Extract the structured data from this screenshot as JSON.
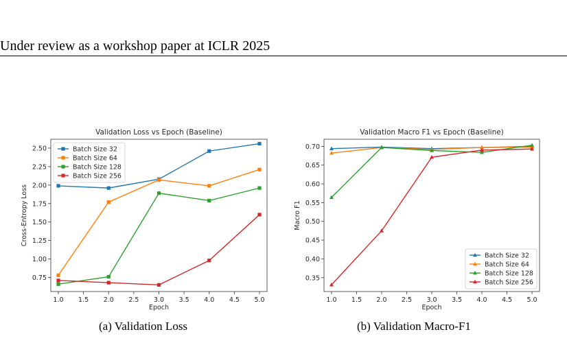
{
  "header": "Under review as a workshop paper at ICLR 2025",
  "captions": [
    "(a) Validation Loss",
    "(b) Validation Macro-F1"
  ],
  "chart_data": [
    {
      "type": "line",
      "title": "Validation Loss vs Epoch (Baseline)",
      "xlabel": "Epoch",
      "ylabel": "Cross-Entropy Loss",
      "x": [
        1.0,
        2.0,
        3.0,
        4.0,
        5.0
      ],
      "xlim": [
        0.85,
        5.15
      ],
      "ylim": [
        0.56,
        2.62
      ],
      "xticks": [
        "1.0",
        "1.5",
        "2.0",
        "2.5",
        "3.0",
        "3.5",
        "4.0",
        "4.5",
        "5.0"
      ],
      "yticks": [
        "0.75",
        "1.00",
        "1.25",
        "1.50",
        "1.75",
        "2.00",
        "2.25",
        "2.50"
      ],
      "marker": "square",
      "legend": "top-left",
      "grid": false,
      "series": [
        {
          "name": "Batch Size 32",
          "color": "#1f77b4",
          "values": [
            1.99,
            1.96,
            2.08,
            2.46,
            2.56
          ]
        },
        {
          "name": "Batch Size 64",
          "color": "#ff7f0e",
          "values": [
            0.78,
            1.77,
            2.07,
            1.99,
            2.21
          ]
        },
        {
          "name": "Batch Size 128",
          "color": "#2ca02c",
          "values": [
            0.66,
            0.76,
            1.89,
            1.79,
            1.96
          ]
        },
        {
          "name": "Batch Size 256",
          "color": "#d62728",
          "values": [
            0.71,
            0.68,
            0.65,
            0.98,
            1.6
          ]
        }
      ]
    },
    {
      "type": "line",
      "title": "Validation Macro F1 vs Epoch (Baseline)",
      "xlabel": "Epoch",
      "ylabel": "Macro F1",
      "x": [
        1.0,
        2.0,
        3.0,
        4.0,
        5.0
      ],
      "xlim": [
        0.85,
        5.15
      ],
      "ylim": [
        0.313,
        0.719
      ],
      "xticks": [
        "1.0",
        "1.5",
        "2.0",
        "2.5",
        "3.0",
        "3.5",
        "4.0",
        "4.5",
        "5.0"
      ],
      "yticks": [
        "0.35",
        "0.40",
        "0.45",
        "0.50",
        "0.55",
        "0.60",
        "0.65",
        "0.70"
      ],
      "marker": "triangle",
      "legend": "bottom-right",
      "grid": false,
      "series": [
        {
          "name": "Batch Size 32",
          "color": "#1f77b4",
          "values": [
            0.694,
            0.698,
            0.694,
            0.697,
            0.7
          ]
        },
        {
          "name": "Batch Size 64",
          "color": "#ff7f0e",
          "values": [
            0.682,
            0.697,
            0.692,
            0.697,
            0.698
          ]
        },
        {
          "name": "Batch Size 128",
          "color": "#2ca02c",
          "values": [
            0.564,
            0.697,
            0.689,
            0.684,
            0.703
          ]
        },
        {
          "name": "Batch Size 256",
          "color": "#d62728",
          "values": [
            0.331,
            0.475,
            0.671,
            0.69,
            0.693
          ]
        }
      ]
    }
  ]
}
